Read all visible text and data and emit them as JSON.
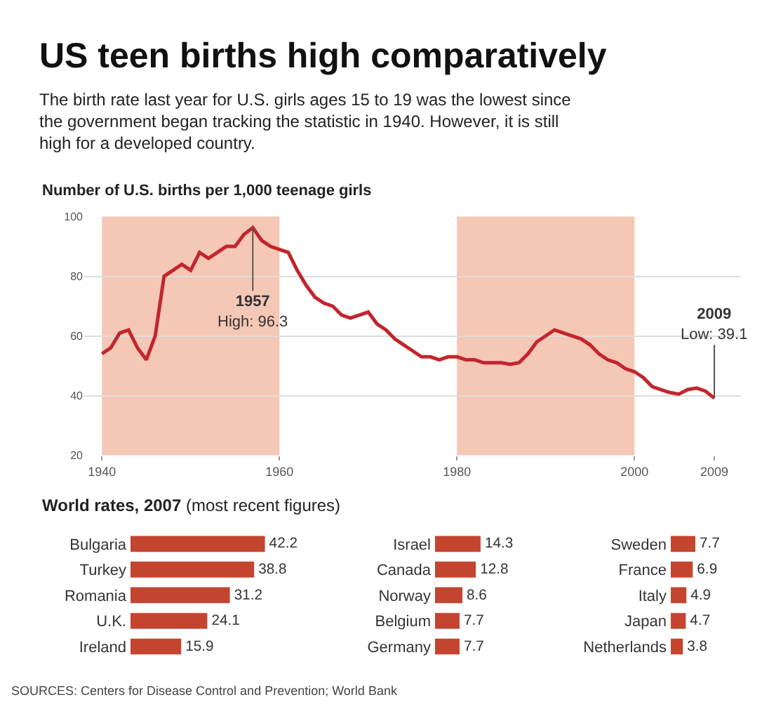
{
  "chart_data": [
    {
      "type": "line",
      "title": "US teen births high comparatively",
      "subtitle": "The birth rate last year for U.S. girls ages 15 to 19 was the lowest since the government began tracking the statistic in 1940. However, it is still high for a developed country.",
      "ylabel": "Number of U.S. births per 1,000 teenage girls",
      "x": [
        1940,
        1941,
        1942,
        1943,
        1944,
        1945,
        1946,
        1947,
        1948,
        1949,
        1950,
        1951,
        1952,
        1953,
        1954,
        1955,
        1956,
        1957,
        1958,
        1959,
        1960,
        1961,
        1962,
        1963,
        1964,
        1965,
        1966,
        1967,
        1968,
        1969,
        1970,
        1971,
        1972,
        1973,
        1974,
        1975,
        1976,
        1977,
        1978,
        1979,
        1980,
        1981,
        1982,
        1983,
        1984,
        1985,
        1986,
        1987,
        1988,
        1989,
        1990,
        1991,
        1992,
        1993,
        1994,
        1995,
        1996,
        1997,
        1998,
        1999,
        2000,
        2001,
        2002,
        2003,
        2004,
        2005,
        2006,
        2007,
        2008,
        2009
      ],
      "series": [
        {
          "color": "#c1272d",
          "values": [
            54,
            56,
            61,
            62,
            56,
            52,
            60,
            80,
            82,
            84,
            82,
            88,
            86,
            88,
            90,
            90,
            94,
            96.3,
            92,
            90,
            89,
            88,
            82,
            77,
            73,
            71,
            70,
            67,
            66,
            67,
            68,
            64,
            62,
            59,
            57,
            55,
            53,
            53,
            52,
            53,
            53,
            52,
            52,
            51,
            51,
            51,
            50.5,
            51,
            54,
            58,
            60,
            62,
            61,
            60,
            59,
            57,
            54,
            52,
            51,
            49,
            48,
            46,
            43,
            42,
            41,
            40.5,
            42,
            42.5,
            41.5,
            39.1
          ]
        }
      ],
      "xlim": [
        1938,
        2012
      ],
      "xticks": [
        1940,
        1960,
        1980,
        2000,
        2009
      ],
      "ylim": [
        20,
        100
      ],
      "yticks": [
        20,
        40,
        60,
        80,
        100
      ],
      "grid": "y",
      "marker": "none",
      "line_style": "solid",
      "bands": [
        {
          "axis": "x",
          "from": 1940,
          "to": 1960,
          "color": "#f2b9a2"
        },
        {
          "axis": "x",
          "from": 1980,
          "to": 2000,
          "color": "#f2b9a2"
        }
      ],
      "annotations": [
        {
          "text": "1957\nHigh: 96.3",
          "x": 1957,
          "y": 96.3
        },
        {
          "text": "2009\nLow: 39.1",
          "x": 2009,
          "y": 39.1
        },
        "SOURCES: Centers for Disease Control and Prevention; World Bank"
      ]
    },
    {
      "type": "bar",
      "orientation": "horizontal",
      "title": "World rates, 2007",
      "subtitle": "(most recent figures)",
      "categories": [
        "Bulgaria",
        "Turkey",
        "Romania",
        "U.K.",
        "Ireland"
      ],
      "values": [
        42.2,
        38.8,
        31.2,
        24.1,
        15.9
      ],
      "color": "#c4452f",
      "data_labels": true,
      "tick_labels": "y"
    },
    {
      "type": "bar",
      "orientation": "horizontal",
      "categories": [
        "Israel",
        "Canada",
        "Norway",
        "Belgium",
        "Germany"
      ],
      "values": [
        14.3,
        12.8,
        8.6,
        7.7,
        7.7
      ],
      "color": "#c4452f",
      "data_labels": true,
      "tick_labels": "y"
    },
    {
      "type": "bar",
      "orientation": "horizontal",
      "categories": [
        "Sweden",
        "France",
        "Italy",
        "Japan",
        "Netherlands"
      ],
      "values": [
        7.7,
        6.9,
        4.9,
        4.7,
        3.8
      ],
      "color": "#c4452f",
      "data_labels": true,
      "tick_labels": "y"
    }
  ]
}
